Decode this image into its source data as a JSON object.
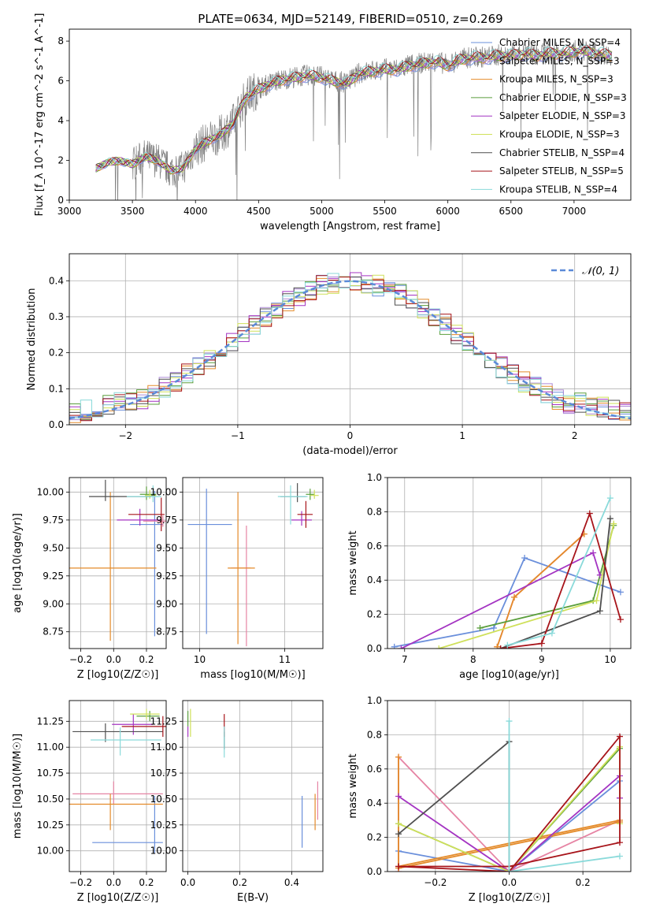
{
  "figure": {
    "title": "PLATE=0634, MJD=52149, FIBERID=0510, z=0.269"
  },
  "chart_data": [
    {
      "id": "spectrum",
      "type": "line",
      "xlabel": "wavelength [Angstrom, rest frame]",
      "ylabel": "Flux [f_λ 10^-17 erg cm^-2 s^-1 A^-1]",
      "xlim": [
        3000,
        7450
      ],
      "ylim": [
        0,
        8.6
      ],
      "xticks": [
        3000,
        3500,
        4000,
        4500,
        5000,
        5500,
        6000,
        6500,
        7000
      ],
      "yticks": [
        0,
        2,
        4,
        6,
        8
      ],
      "legend_position": "top-right",
      "observed": {
        "color": "#808080",
        "x": [
          3210,
          3300,
          3400,
          3500,
          3600,
          3700,
          3800,
          3900,
          4000,
          4100,
          4200,
          4300,
          4400,
          4500,
          4600,
          4700,
          4800,
          4900,
          5000,
          5100,
          5200,
          5300,
          5400,
          5500,
          5600,
          5700,
          5800,
          5900,
          6000,
          6100,
          6200,
          6300,
          6400,
          6500,
          6600,
          6700,
          6800,
          6900,
          7000,
          7100,
          7200,
          7300
        ],
        "y": [
          1.6,
          1.9,
          2.0,
          1.8,
          2.2,
          2.0,
          1.5,
          1.6,
          2.6,
          3.0,
          3.3,
          3.9,
          5.2,
          5.6,
          5.9,
          6.1,
          6.2,
          6.3,
          6.2,
          6.0,
          5.9,
          6.4,
          6.5,
          6.6,
          6.6,
          6.8,
          6.9,
          7.0,
          6.8,
          7.1,
          7.2,
          7.2,
          7.3,
          7.3,
          7.4,
          7.3,
          7.4,
          7.4,
          7.5,
          7.5,
          7.4,
          7.3
        ]
      },
      "legend": [
        {
          "label": "Chabrier MILES, N_SSP=4",
          "color": "#6a8fdb"
        },
        {
          "label": "Salpeter MILES, N_SSP=3",
          "color": "#ad8ad6"
        },
        {
          "label": "Kroupa MILES, N_SSP=3",
          "color": "#e48b2a"
        },
        {
          "label": "Chabrier ELODIE, N_SSP=3",
          "color": "#5a9e3c"
        },
        {
          "label": "Salpeter ELODIE, N_SSP=3",
          "color": "#a434c2"
        },
        {
          "label": "Kroupa ELODIE, N_SSP=3",
          "color": "#cfe05a"
        },
        {
          "label": "Chabrier STELIB, N_SSP=4",
          "color": "#4f4f4f"
        },
        {
          "label": "Salpeter STELIB, N_SSP=5",
          "color": "#a7141a"
        },
        {
          "label": "Kroupa STELIB, N_SSP=4",
          "color": "#8adada"
        }
      ]
    },
    {
      "id": "residuals",
      "type": "line",
      "xlabel": "(data-model)/error",
      "ylabel": "Normed distribution",
      "xlim": [
        -2.5,
        2.5
      ],
      "ylim": [
        0,
        0.475
      ],
      "xticks": [
        -2,
        -1,
        0,
        1,
        2
      ],
      "yticks": [
        0.0,
        0.1,
        0.2,
        0.3,
        0.4
      ],
      "legend": [
        {
          "label": "𝒩(0, 1)",
          "color": "#5b8ad8",
          "style": "dashed"
        }
      ],
      "grid": true
    },
    {
      "id": "age-z",
      "type": "scatter",
      "xlabel": "Z [log10(Z/Z☉)]",
      "ylabel": "age  [log10(age/yr)]",
      "xlim": [
        -0.27,
        0.32
      ],
      "ylim": [
        8.6,
        10.13
      ],
      "xticks": [
        -0.2,
        0.0,
        0.2
      ],
      "yticks": [
        8.75,
        9.0,
        9.25,
        9.5,
        9.75,
        10.0
      ],
      "grid": true,
      "points": [
        {
          "x": 0.25,
          "y": 9.71,
          "xerr": [
            0.15,
            0.05
          ],
          "yerr": [
            1.0,
            0.3
          ],
          "color": "#6a8fdb"
        },
        {
          "x": 0.3,
          "y": 9.74,
          "xerr": [
            0.12,
            0.02
          ],
          "yerr": [
            0.05,
            0.05
          ],
          "color": "#e684a4"
        },
        {
          "x": -0.02,
          "y": 9.32,
          "xerr": [
            0.27,
            0.28
          ],
          "yerr": [
            0.65,
            0.68
          ],
          "color": "#e48b2a"
        },
        {
          "x": 0.2,
          "y": 9.98,
          "xerr": [
            0.04,
            0.06
          ],
          "yerr": [
            0.05,
            0.07
          ],
          "color": "#5a9e3c"
        },
        {
          "x": 0.16,
          "y": 9.75,
          "xerr": [
            0.14,
            0.13
          ],
          "yerr": [
            0.05,
            0.1
          ],
          "color": "#a434c2"
        },
        {
          "x": 0.22,
          "y": 9.97,
          "xerr": [
            0.03,
            0.04
          ],
          "yerr": [
            0.03,
            0.05
          ],
          "color": "#cfe05a"
        },
        {
          "x": -0.05,
          "y": 9.96,
          "xerr": [
            0.1,
            0.28
          ],
          "yerr": [
            0.04,
            0.15
          ],
          "color": "#4f4f4f"
        },
        {
          "x": 0.29,
          "y": 9.8,
          "xerr": [
            0.2,
            0.02
          ],
          "yerr": [
            0.15,
            0.15
          ],
          "color": "#a7141a"
        },
        {
          "x": 0.24,
          "y": 9.96,
          "xerr": [
            0.16,
            0.05
          ],
          "yerr": [
            0.05,
            0.1
          ],
          "color": "#8adada"
        }
      ]
    },
    {
      "id": "age-mass",
      "type": "scatter",
      "xlabel": "mass [log10(M/M☉)]",
      "ylabel": "",
      "xlim": [
        9.8,
        11.45
      ],
      "ylim": [
        8.6,
        10.13
      ],
      "xticks": [
        10,
        11
      ],
      "yticks": [
        8.75,
        9.0,
        9.25,
        9.5,
        9.75,
        10.0
      ],
      "grid": true,
      "points": [
        {
          "x": 10.08,
          "y": 9.71,
          "xerr": [
            0.22,
            0.3
          ],
          "yerr": [
            0.98,
            0.32
          ],
          "color": "#6a8fdb"
        },
        {
          "x": 10.55,
          "y": 9.32,
          "xerr": [
            0.18,
            0.05
          ],
          "yerr": [
            0.7,
            0.38
          ],
          "color": "#e684a4"
        },
        {
          "x": 10.45,
          "y": 9.32,
          "xerr": [
            0.12,
            0.2
          ],
          "yerr": [
            0.68,
            0.68
          ],
          "color": "#e48b2a"
        },
        {
          "x": 11.3,
          "y": 9.98,
          "xerr": [
            0.05,
            0.05
          ],
          "yerr": [
            0.05,
            0.05
          ],
          "color": "#5a9e3c"
        },
        {
          "x": 11.2,
          "y": 9.75,
          "xerr": [
            0.12,
            0.12
          ],
          "yerr": [
            0.05,
            0.08
          ],
          "color": "#a434c2"
        },
        {
          "x": 11.35,
          "y": 9.97,
          "xerr": [
            0.05,
            0.05
          ],
          "yerr": [
            0.03,
            0.05
          ],
          "color": "#cfe05a"
        },
        {
          "x": 11.15,
          "y": 9.96,
          "xerr": [
            0.2,
            0.1
          ],
          "yerr": [
            0.05,
            0.12
          ],
          "color": "#4f4f4f"
        },
        {
          "x": 11.25,
          "y": 9.8,
          "xerr": [
            0.1,
            0.08
          ],
          "yerr": [
            0.12,
            0.12
          ],
          "color": "#a7141a"
        },
        {
          "x": 11.07,
          "y": 9.96,
          "xerr": [
            0.15,
            0.2
          ],
          "yerr": [
            0.25,
            0.1
          ],
          "color": "#8adada"
        }
      ]
    },
    {
      "id": "weight-age",
      "type": "line",
      "xlabel": "age  [log10(age/yr)]",
      "ylabel": "mass weight",
      "xlim": [
        6.75,
        10.3
      ],
      "ylim": [
        0,
        1.0
      ],
      "xticks": [
        7,
        8,
        9,
        10
      ],
      "yticks": [
        0.0,
        0.2,
        0.4,
        0.6,
        0.8,
        1.0
      ],
      "grid": true,
      "series": [
        {
          "color": "#6a8fdb",
          "x": [
            6.85,
            8.3,
            8.75,
            10.15
          ],
          "y": [
            0.01,
            0.12,
            0.53,
            0.33
          ]
        },
        {
          "color": "#e684a4",
          "x": [
            8.35,
            8.6,
            9.62
          ],
          "y": [
            0.01,
            0.3,
            0.67
          ]
        },
        {
          "color": "#e48b2a",
          "x": [
            8.35,
            8.6,
            9.62
          ],
          "y": [
            0.01,
            0.3,
            0.67
          ]
        },
        {
          "color": "#5a9e3c",
          "x": [
            8.1,
            9.75,
            10.05
          ],
          "y": [
            0.12,
            0.28,
            0.72
          ]
        },
        {
          "color": "#a434c2",
          "x": [
            6.95,
            9.75,
            9.85
          ],
          "y": [
            0.0,
            0.56,
            0.43
          ]
        },
        {
          "color": "#cfe05a",
          "x": [
            7.5,
            9.8,
            10.05
          ],
          "y": [
            0.0,
            0.28,
            0.73
          ]
        },
        {
          "color": "#4f4f4f",
          "x": [
            8.4,
            9.85,
            10.0
          ],
          "y": [
            0.0,
            0.22,
            0.76
          ]
        },
        {
          "color": "#a7141a",
          "x": [
            8.4,
            9.0,
            9.7,
            10.15
          ],
          "y": [
            0.0,
            0.03,
            0.79,
            0.17
          ]
        },
        {
          "color": "#8adada",
          "x": [
            8.5,
            9.15,
            10.0
          ],
          "y": [
            0.02,
            0.09,
            0.88
          ]
        }
      ]
    },
    {
      "id": "mass-z",
      "type": "scatter",
      "xlabel": "Z [log10(Z/Z☉)]",
      "ylabel": "mass [log10(M/M☉)]",
      "xlim": [
        -0.27,
        0.32
      ],
      "ylim": [
        9.8,
        11.45
      ],
      "xticks": [
        -0.2,
        0.0,
        0.2
      ],
      "yticks": [
        10.0,
        10.25,
        10.5,
        10.75,
        11.0,
        11.25
      ],
      "grid": true,
      "points": [
        {
          "x": 0.25,
          "y": 10.08,
          "xerr": [
            0.38,
            0.05
          ],
          "yerr": [
            0.1,
            0.45
          ],
          "color": "#6a8fdb"
        },
        {
          "x": 0.0,
          "y": 10.55,
          "xerr": [
            0.25,
            0.3
          ],
          "yerr": [
            0.1,
            0.12
          ],
          "color": "#e684a4"
        },
        {
          "x": -0.02,
          "y": 10.45,
          "xerr": [
            0.25,
            0.32
          ],
          "yerr": [
            0.25,
            0.1
          ],
          "color": "#e48b2a"
        },
        {
          "x": 0.22,
          "y": 11.3,
          "xerr": [
            0.08,
            0.06
          ],
          "yerr": [
            0.05,
            0.05
          ],
          "color": "#5a9e3c"
        },
        {
          "x": 0.12,
          "y": 11.22,
          "xerr": [
            0.13,
            0.12
          ],
          "yerr": [
            0.1,
            0.1
          ],
          "color": "#a434c2"
        },
        {
          "x": 0.2,
          "y": 11.32,
          "xerr": [
            0.1,
            0.08
          ],
          "yerr": [
            0.05,
            0.05
          ],
          "color": "#cfe05a"
        },
        {
          "x": -0.05,
          "y": 11.15,
          "xerr": [
            0.2,
            0.35
          ],
          "yerr": [
            0.1,
            0.08
          ],
          "color": "#4f4f4f"
        },
        {
          "x": 0.3,
          "y": 11.2,
          "xerr": [
            0.25,
            0.02
          ],
          "yerr": [
            0.1,
            0.1
          ],
          "color": "#a7141a"
        },
        {
          "x": 0.04,
          "y": 11.07,
          "xerr": [
            0.18,
            0.25
          ],
          "yerr": [
            0.15,
            0.12
          ],
          "color": "#8adada"
        }
      ]
    },
    {
      "id": "mass-ebv",
      "type": "scatter",
      "xlabel": "E(B-V)",
      "ylabel": "",
      "xlim": [
        -0.02,
        0.52
      ],
      "ylim": [
        9.8,
        11.45
      ],
      "xticks": [
        0.0,
        0.2,
        0.4
      ],
      "yticks": [
        10.0,
        10.25,
        10.5,
        10.75,
        11.0,
        11.25
      ],
      "grid": true,
      "points": [
        {
          "x": 0.44,
          "y": 10.08,
          "xerr": [
            0,
            0
          ],
          "yerr": [
            0.05,
            0.45
          ],
          "color": "#6a8fdb"
        },
        {
          "x": 0.5,
          "y": 10.55,
          "xerr": [
            0,
            0
          ],
          "yerr": [
            0.25,
            0.12
          ],
          "color": "#e684a4"
        },
        {
          "x": 0.49,
          "y": 10.45,
          "xerr": [
            0,
            0
          ],
          "yerr": [
            0.25,
            0.1
          ],
          "color": "#e48b2a"
        },
        {
          "x": 0.0,
          "y": 11.3,
          "xerr": [
            0,
            0
          ],
          "yerr": [
            0.1,
            0.05
          ],
          "color": "#5a9e3c"
        },
        {
          "x": 0.0,
          "y": 11.15,
          "xerr": [
            0,
            0
          ],
          "yerr": [
            0.05,
            0.05
          ],
          "color": "#a434c2"
        },
        {
          "x": 0.01,
          "y": 11.25,
          "xerr": [
            0,
            0
          ],
          "yerr": [
            0.15,
            0.12
          ],
          "color": "#cfe05a"
        },
        {
          "x": 0.14,
          "y": 11.1,
          "xerr": [
            0,
            0
          ],
          "yerr": [
            0.12,
            0.05
          ],
          "color": "#4f4f4f"
        },
        {
          "x": 0.14,
          "y": 11.2,
          "xerr": [
            0,
            0
          ],
          "yerr": [
            0.1,
            0.12
          ],
          "color": "#a7141a"
        },
        {
          "x": 0.14,
          "y": 11.05,
          "xerr": [
            0,
            0
          ],
          "yerr": [
            0.15,
            0.15
          ],
          "color": "#8adada"
        }
      ]
    },
    {
      "id": "weight-z",
      "type": "line",
      "xlabel": "Z [log10(Z/Z☉)]",
      "ylabel": "mass weight",
      "xlim": [
        -0.33,
        0.33
      ],
      "ylim": [
        0,
        1.0
      ],
      "xticks": [
        -0.2,
        0.0,
        0.2
      ],
      "yticks": [
        0.0,
        0.2,
        0.4,
        0.6,
        0.8,
        1.0
      ],
      "grid": true,
      "series": [
        {
          "color": "#6a8fdb",
          "x": [
            -0.3,
            0.0,
            0.3
          ],
          "y": [
            0.12,
            0.0,
            0.53
          ]
        },
        {
          "color": "#e684a4",
          "x": [
            -0.3,
            -0.3,
            0.0,
            0.3
          ],
          "y": [
            0.0,
            0.67,
            0.0,
            0.3
          ]
        },
        {
          "color": "#e48b2a",
          "x": [
            -0.3,
            0.3,
            0.3,
            -0.3,
            -0.3
          ],
          "y": [
            0.03,
            0.3,
            0.29,
            0.02,
            0.67
          ]
        },
        {
          "color": "#5a9e3c",
          "x": [
            -0.3,
            0.0,
            0.3
          ],
          "y": [
            0.28,
            0.0,
            0.72
          ]
        },
        {
          "color": "#a434c2",
          "x": [
            -0.3,
            0.0,
            0.3,
            0.3
          ],
          "y": [
            0.44,
            0.0,
            0.56,
            0.43
          ]
        },
        {
          "color": "#cfe05a",
          "x": [
            -0.3,
            0.0,
            0.3,
            0.3
          ],
          "y": [
            0.28,
            0.0,
            0.73,
            0.28
          ]
        },
        {
          "color": "#4f4f4f",
          "x": [
            -0.3,
            0.0,
            0.0
          ],
          "y": [
            0.22,
            0.76,
            0.0
          ]
        },
        {
          "color": "#a7141a",
          "x": [
            -0.3,
            0.0,
            0.3,
            0.3,
            0.0,
            -0.3
          ],
          "y": [
            0.03,
            0.0,
            0.79,
            0.17,
            0.03,
            0.03
          ]
        },
        {
          "color": "#8adada",
          "x": [
            0.0,
            0.0,
            0.3
          ],
          "y": [
            0.88,
            0.0,
            0.09
          ]
        }
      ]
    }
  ]
}
